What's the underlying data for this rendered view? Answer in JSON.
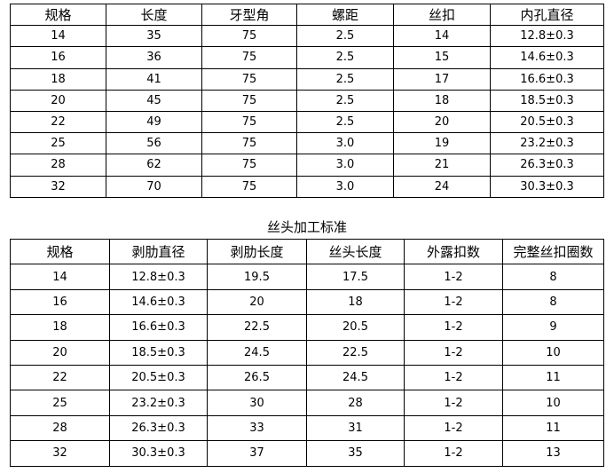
{
  "table1": {
    "headers": [
      "规格",
      "长度",
      "牙型角",
      "螺距",
      "丝扣",
      "内孔直径"
    ],
    "rows": [
      [
        "14",
        "35",
        "75",
        "2.5",
        "14",
        "12.8±0.3"
      ],
      [
        "16",
        "36",
        "75",
        "2.5",
        "15",
        "14.6±0.3"
      ],
      [
        "18",
        "41",
        "75",
        "2.5",
        "17",
        "16.6±0.3"
      ],
      [
        "20",
        "45",
        "75",
        "2.5",
        "18",
        "18.5±0.3"
      ],
      [
        "22",
        "49",
        "75",
        "2.5",
        "20",
        "20.5±0.3"
      ],
      [
        "25",
        "56",
        "75",
        "3.0",
        "19",
        "23.2±0.3"
      ],
      [
        "28",
        "62",
        "75",
        "3.0",
        "21",
        "26.3±0.3"
      ],
      [
        "32",
        "70",
        "75",
        "3.0",
        "24",
        "30.3±0.3"
      ]
    ]
  },
  "table2": {
    "title": "丝头加工标准",
    "headers": [
      "规格",
      "剥肋直径",
      "剥肋长度",
      "丝头长度",
      "外露扣数",
      "完整丝扣圈数"
    ],
    "rows": [
      [
        "14",
        "12.8±0.3",
        "19.5",
        "17.5",
        "1-2",
        "8"
      ],
      [
        "16",
        "14.6±0.3",
        "20",
        "18",
        "1-2",
        "8"
      ],
      [
        "18",
        "16.6±0.3",
        "22.5",
        "20.5",
        "1-2",
        "9"
      ],
      [
        "20",
        "18.5±0.3",
        "24.5",
        "22.5",
        "1-2",
        "10"
      ],
      [
        "22",
        "20.5±0.3",
        "26.5",
        "24.5",
        "1-2",
        "11"
      ],
      [
        "25",
        "23.2±0.3",
        "30",
        "28",
        "1-2",
        "10"
      ],
      [
        "28",
        "26.3±0.3",
        "33",
        "31",
        "1-2",
        "11"
      ],
      [
        "32",
        "30.3±0.3",
        "37",
        "35",
        "1-2",
        "13"
      ]
    ]
  }
}
